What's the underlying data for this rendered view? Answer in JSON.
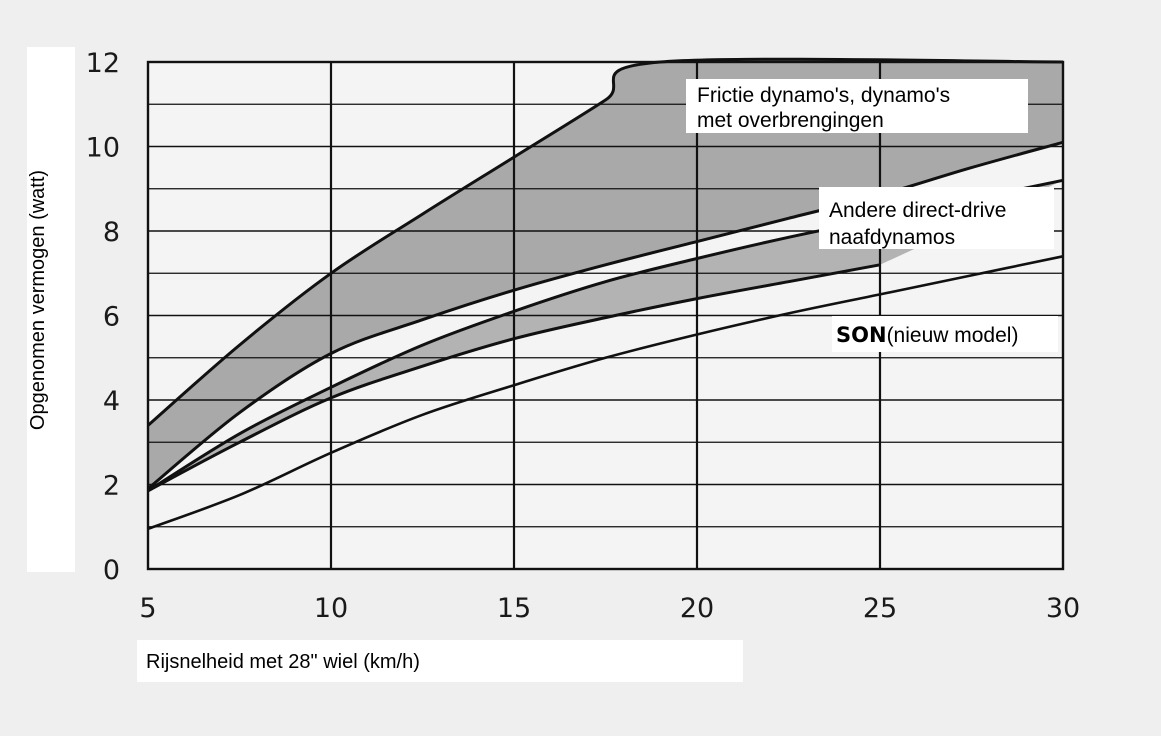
{
  "chart_data": {
    "type": "area",
    "xlabel": "Rijsnelheid met 28\" wiel (km/h)",
    "ylabel": "Opgenomen vermogen (watt)",
    "xlim": [
      5,
      30
    ],
    "ylim": [
      0,
      12
    ],
    "x_ticks": [
      5,
      10,
      15,
      20,
      25,
      30
    ],
    "y_ticks": [
      0,
      2,
      4,
      6,
      8,
      10,
      12
    ],
    "grid": true,
    "bands": [
      {
        "name": "Frictie dynamo's, dynamo's met overbrengingen",
        "color": "#a9a9a9",
        "upper": {
          "x": [
            5,
            7.5,
            10,
            12.5,
            15,
            17.5,
            19,
            30
          ],
          "y": [
            3.4,
            5.3,
            7.0,
            8.4,
            9.75,
            11.1,
            12,
            12
          ]
        },
        "lower": {
          "x": [
            5,
            7.5,
            10,
            12.5,
            15,
            17.5,
            20,
            22.5,
            25,
            27.5,
            30
          ],
          "y": [
            1.9,
            3.7,
            5.1,
            5.9,
            6.6,
            7.2,
            7.75,
            8.3,
            8.85,
            9.5,
            10.1
          ]
        }
      },
      {
        "name": "Andere direct-drive naafdynamos",
        "color": "#b3b3b3",
        "upper": {
          "x": [
            5,
            7.5,
            10,
            12.5,
            15,
            17.5,
            20,
            22.5,
            25,
            27.5,
            30
          ],
          "y": [
            1.85,
            3.2,
            4.3,
            5.3,
            6.1,
            6.8,
            7.35,
            7.85,
            8.3,
            8.75,
            9.2
          ]
        },
        "lower": {
          "x": [
            5,
            7.5,
            10,
            12.5,
            15,
            17.5,
            20,
            22.5,
            25
          ],
          "y": [
            1.85,
            3.0,
            4.05,
            4.8,
            5.45,
            5.95,
            6.4,
            6.8,
            7.2
          ]
        }
      }
    ],
    "series": [
      {
        "name": "SON(nieuw model)",
        "x": [
          5,
          7.5,
          10,
          12.5,
          15,
          17.5,
          20,
          22.5,
          25,
          27.5,
          30
        ],
        "y": [
          0.95,
          1.75,
          2.75,
          3.65,
          4.35,
          5.0,
          5.55,
          6.05,
          6.5,
          6.95,
          7.4
        ]
      }
    ],
    "annotations": {
      "friction": {
        "line1": "Frictie dynamo's, dynamo's",
        "line2": "met overbrengingen"
      },
      "direct": {
        "line1": "Andere direct-drive",
        "line2": "naafdynamos"
      },
      "son": {
        "bold": "SON",
        "rest": "(nieuw model)"
      }
    }
  }
}
